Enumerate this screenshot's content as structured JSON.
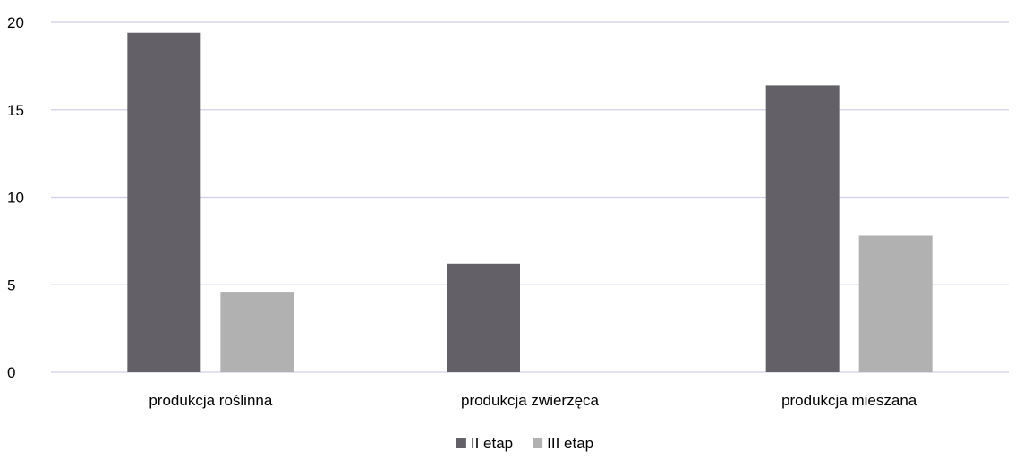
{
  "chart_data": {
    "type": "bar",
    "title": "",
    "xlabel": "",
    "ylabel": "",
    "ylim": [
      0,
      20
    ],
    "yticks": [
      0,
      5,
      10,
      15,
      20
    ],
    "grid": true,
    "legend_position": "bottom-center",
    "categories": [
      "produkcja roślinna",
      "produkcja zwierzęca",
      "produkcja mieszana"
    ],
    "series": [
      {
        "name": "II etap",
        "color": "#636167",
        "values": [
          19.4,
          6.2,
          16.4
        ]
      },
      {
        "name": "III etap",
        "color": "#b1b1b1",
        "values": [
          4.6,
          0,
          7.8
        ]
      }
    ]
  }
}
